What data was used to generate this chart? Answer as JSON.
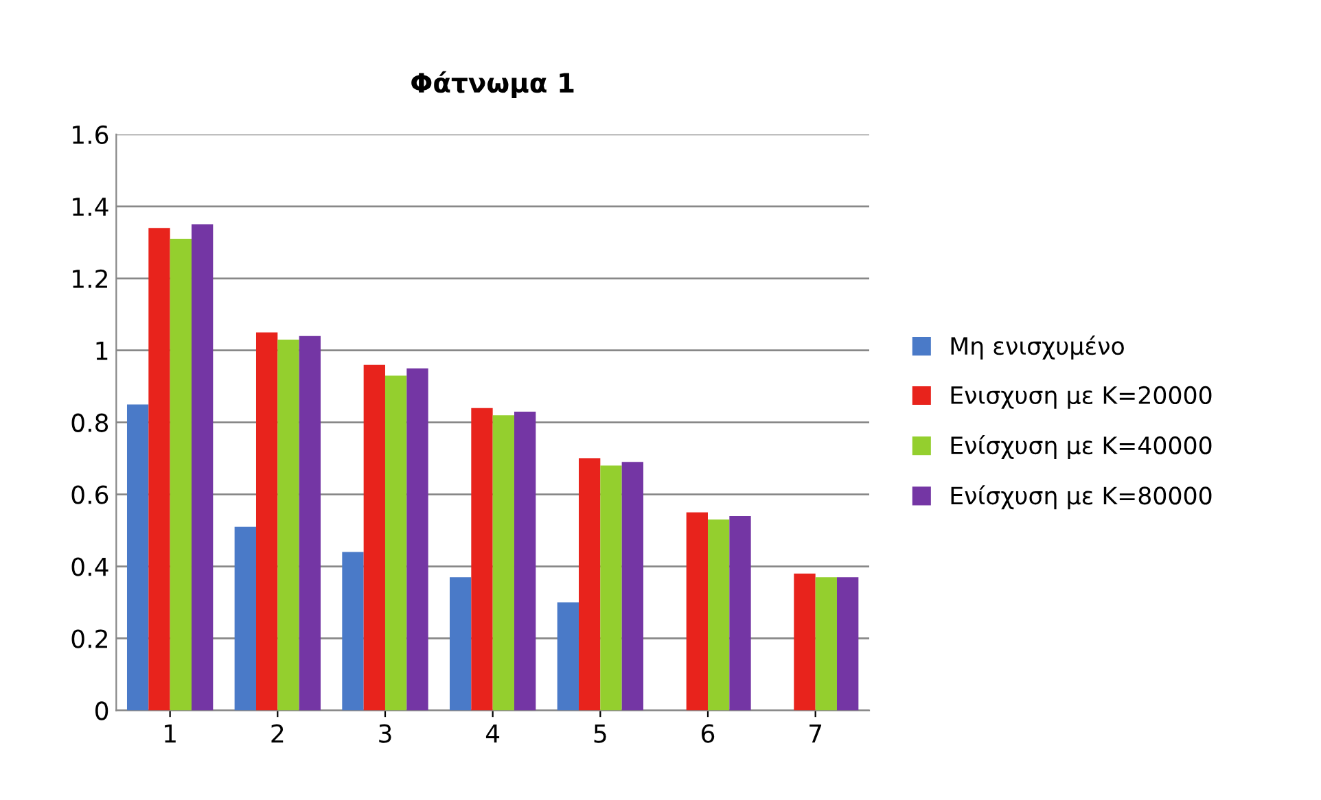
{
  "chart_data": {
    "type": "bar",
    "title": "Φάτνωμα 1",
    "categories": [
      "1",
      "2",
      "3",
      "4",
      "5",
      "6",
      "7"
    ],
    "series": [
      {
        "name": "Μη ενισχυμένο",
        "color": "#4a7ac8",
        "values": [
          0.85,
          0.51,
          0.44,
          0.37,
          0.3,
          null,
          null
        ]
      },
      {
        "name": "Ενισχυση με Κ=20000",
        "color": "#e8231c",
        "values": [
          1.34,
          1.05,
          0.96,
          0.84,
          0.7,
          0.55,
          0.38
        ]
      },
      {
        "name": "Ενίσχυση με Κ=40000",
        "color": "#94cf2e",
        "values": [
          1.31,
          1.03,
          0.93,
          0.82,
          0.68,
          0.53,
          0.37
        ]
      },
      {
        "name": "Ενίσχυση με Κ=80000",
        "color": "#7436a4",
        "values": [
          1.35,
          1.04,
          0.95,
          0.83,
          0.69,
          0.54,
          0.37
        ]
      }
    ],
    "ylim": [
      0,
      1.6
    ],
    "yticks": [
      0,
      0.2,
      0.4,
      0.6,
      0.8,
      1,
      1.2,
      1.4,
      1.6
    ],
    "grid": "y",
    "legend": "right"
  }
}
